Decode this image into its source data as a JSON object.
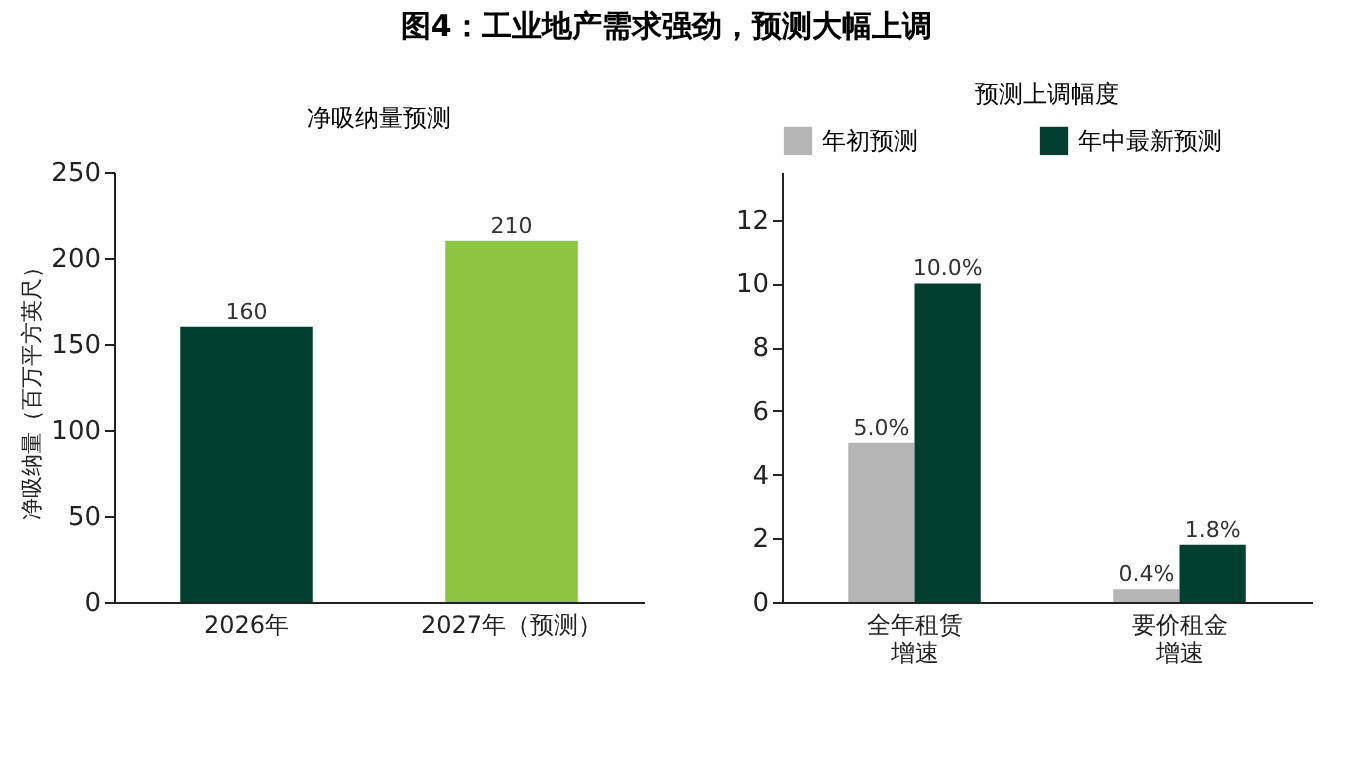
{
  "chart_data": [
    {
      "type": "bar",
      "title": "净吸纳量预测",
      "ylabel": "净吸纳量（百万平方英尺）",
      "annotations": [
        "图4：工业地产需求强劲，预测大幅上调"
      ],
      "categories": [
        "2026年",
        "2027年（预测）"
      ],
      "values": [
        160,
        210
      ],
      "colors": [
        "#003f2d",
        "#8cc63e"
      ],
      "ylim": [
        0,
        250
      ],
      "yticks": [
        0,
        50,
        100,
        150,
        200,
        250
      ],
      "data_labels": true,
      "grid": false,
      "legend": false
    },
    {
      "type": "bar",
      "title": "预测上调幅度",
      "categories": [
        "全年租赁增速",
        "要价租金增速"
      ],
      "series": [
        {
          "name": "年初预测",
          "color": "#b5b5b5",
          "values": [
            5.0,
            0.4
          ],
          "value_labels": [
            "5.0%",
            "0.4%"
          ]
        },
        {
          "name": "年中最新预测",
          "color": "#003f2d",
          "values": [
            10.0,
            1.8
          ],
          "value_labels": [
            "10.0%",
            "1.8%"
          ]
        }
      ],
      "ylim": [
        0,
        13.5
      ],
      "yticks": [
        0,
        2,
        4,
        6,
        8,
        10,
        12
      ],
      "grid": false,
      "legend": "top"
    }
  ]
}
